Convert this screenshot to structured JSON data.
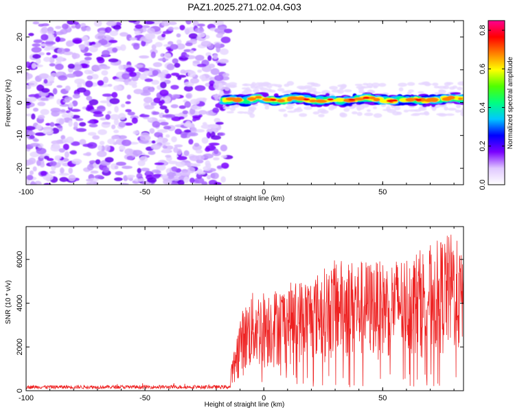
{
  "title": "PAZ1.2025.271.02.04.G03",
  "chart_data": [
    {
      "type": "heatmap",
      "name": "spectrogram",
      "xlabel": "Height of straight line (km)",
      "ylabel": "Frequency (Hz)",
      "xlim": [
        -100,
        84
      ],
      "ylim": [
        -25,
        25
      ],
      "xticks": [
        -100,
        -50,
        0,
        50
      ],
      "xtick_labels": [
        "-100",
        "-50",
        "0",
        "50"
      ],
      "yticks": [
        -20,
        -10,
        0,
        10,
        20
      ],
      "ytick_labels": [
        "-20",
        "-10",
        "0",
        "10",
        "20"
      ],
      "noise_region_x": [
        -100,
        -17
      ],
      "signal_band": {
        "x": [
          -18,
          84
        ],
        "center_freq": [
          0.5,
          1.0,
          0.5,
          1.5,
          1.0,
          0.5,
          1.5,
          1.0,
          0.5,
          1.0,
          0.5,
          1.0,
          1.5,
          1.0,
          0.5,
          1.0,
          1.0,
          0.5,
          1.0,
          1.5,
          1.0
        ],
        "half_width_hz": 2.5
      },
      "colorbar": {
        "label": "Normalized spectral amplitude",
        "range": [
          0.0,
          0.85
        ],
        "ticks": [
          0.0,
          0.2,
          0.4,
          0.6,
          0.8
        ],
        "tick_labels": [
          "0.0",
          "0.2",
          "0.4",
          "0.6",
          "0.8"
        ],
        "colors": [
          "#ffffff",
          "#e0c8ff",
          "#7a00ff",
          "#0000ff",
          "#00c8ff",
          "#00ff80",
          "#50ff00",
          "#ffff00",
          "#ff8000",
          "#ff0000",
          "#ff0090"
        ]
      }
    },
    {
      "type": "line",
      "name": "snr",
      "xlabel": "Height of straight line (km)",
      "ylabel": "SNR (10 * v/v)",
      "xlim": [
        -100,
        84
      ],
      "ylim": [
        0,
        7500
      ],
      "xticks": [
        -100,
        -50,
        0,
        50
      ],
      "xtick_labels": [
        "-100",
        "-50",
        "0",
        "50"
      ],
      "yticks": [
        0,
        2000,
        4000,
        6000
      ],
      "ytick_labels": [
        "0",
        "2000",
        "4000",
        "6000"
      ],
      "color": "#ee2222",
      "noise_floor_x": [
        -100,
        -14
      ],
      "noise_floor_level": 170,
      "rise_start_x": -14,
      "envelope": {
        "x": [
          -14,
          -10,
          -5,
          0,
          5,
          10,
          15,
          20,
          30,
          40,
          50,
          60,
          70,
          80,
          84
        ],
        "min": [
          300,
          600,
          800,
          900,
          1000,
          1100,
          1200,
          1300,
          1300,
          1300,
          1400,
          1400,
          1500,
          1500,
          1500
        ],
        "max": [
          900,
          3500,
          4500,
          4600,
          4700,
          4900,
          5100,
          5200,
          6000,
          6000,
          5900,
          6200,
          6700,
          7300,
          6000
        ]
      }
    }
  ]
}
